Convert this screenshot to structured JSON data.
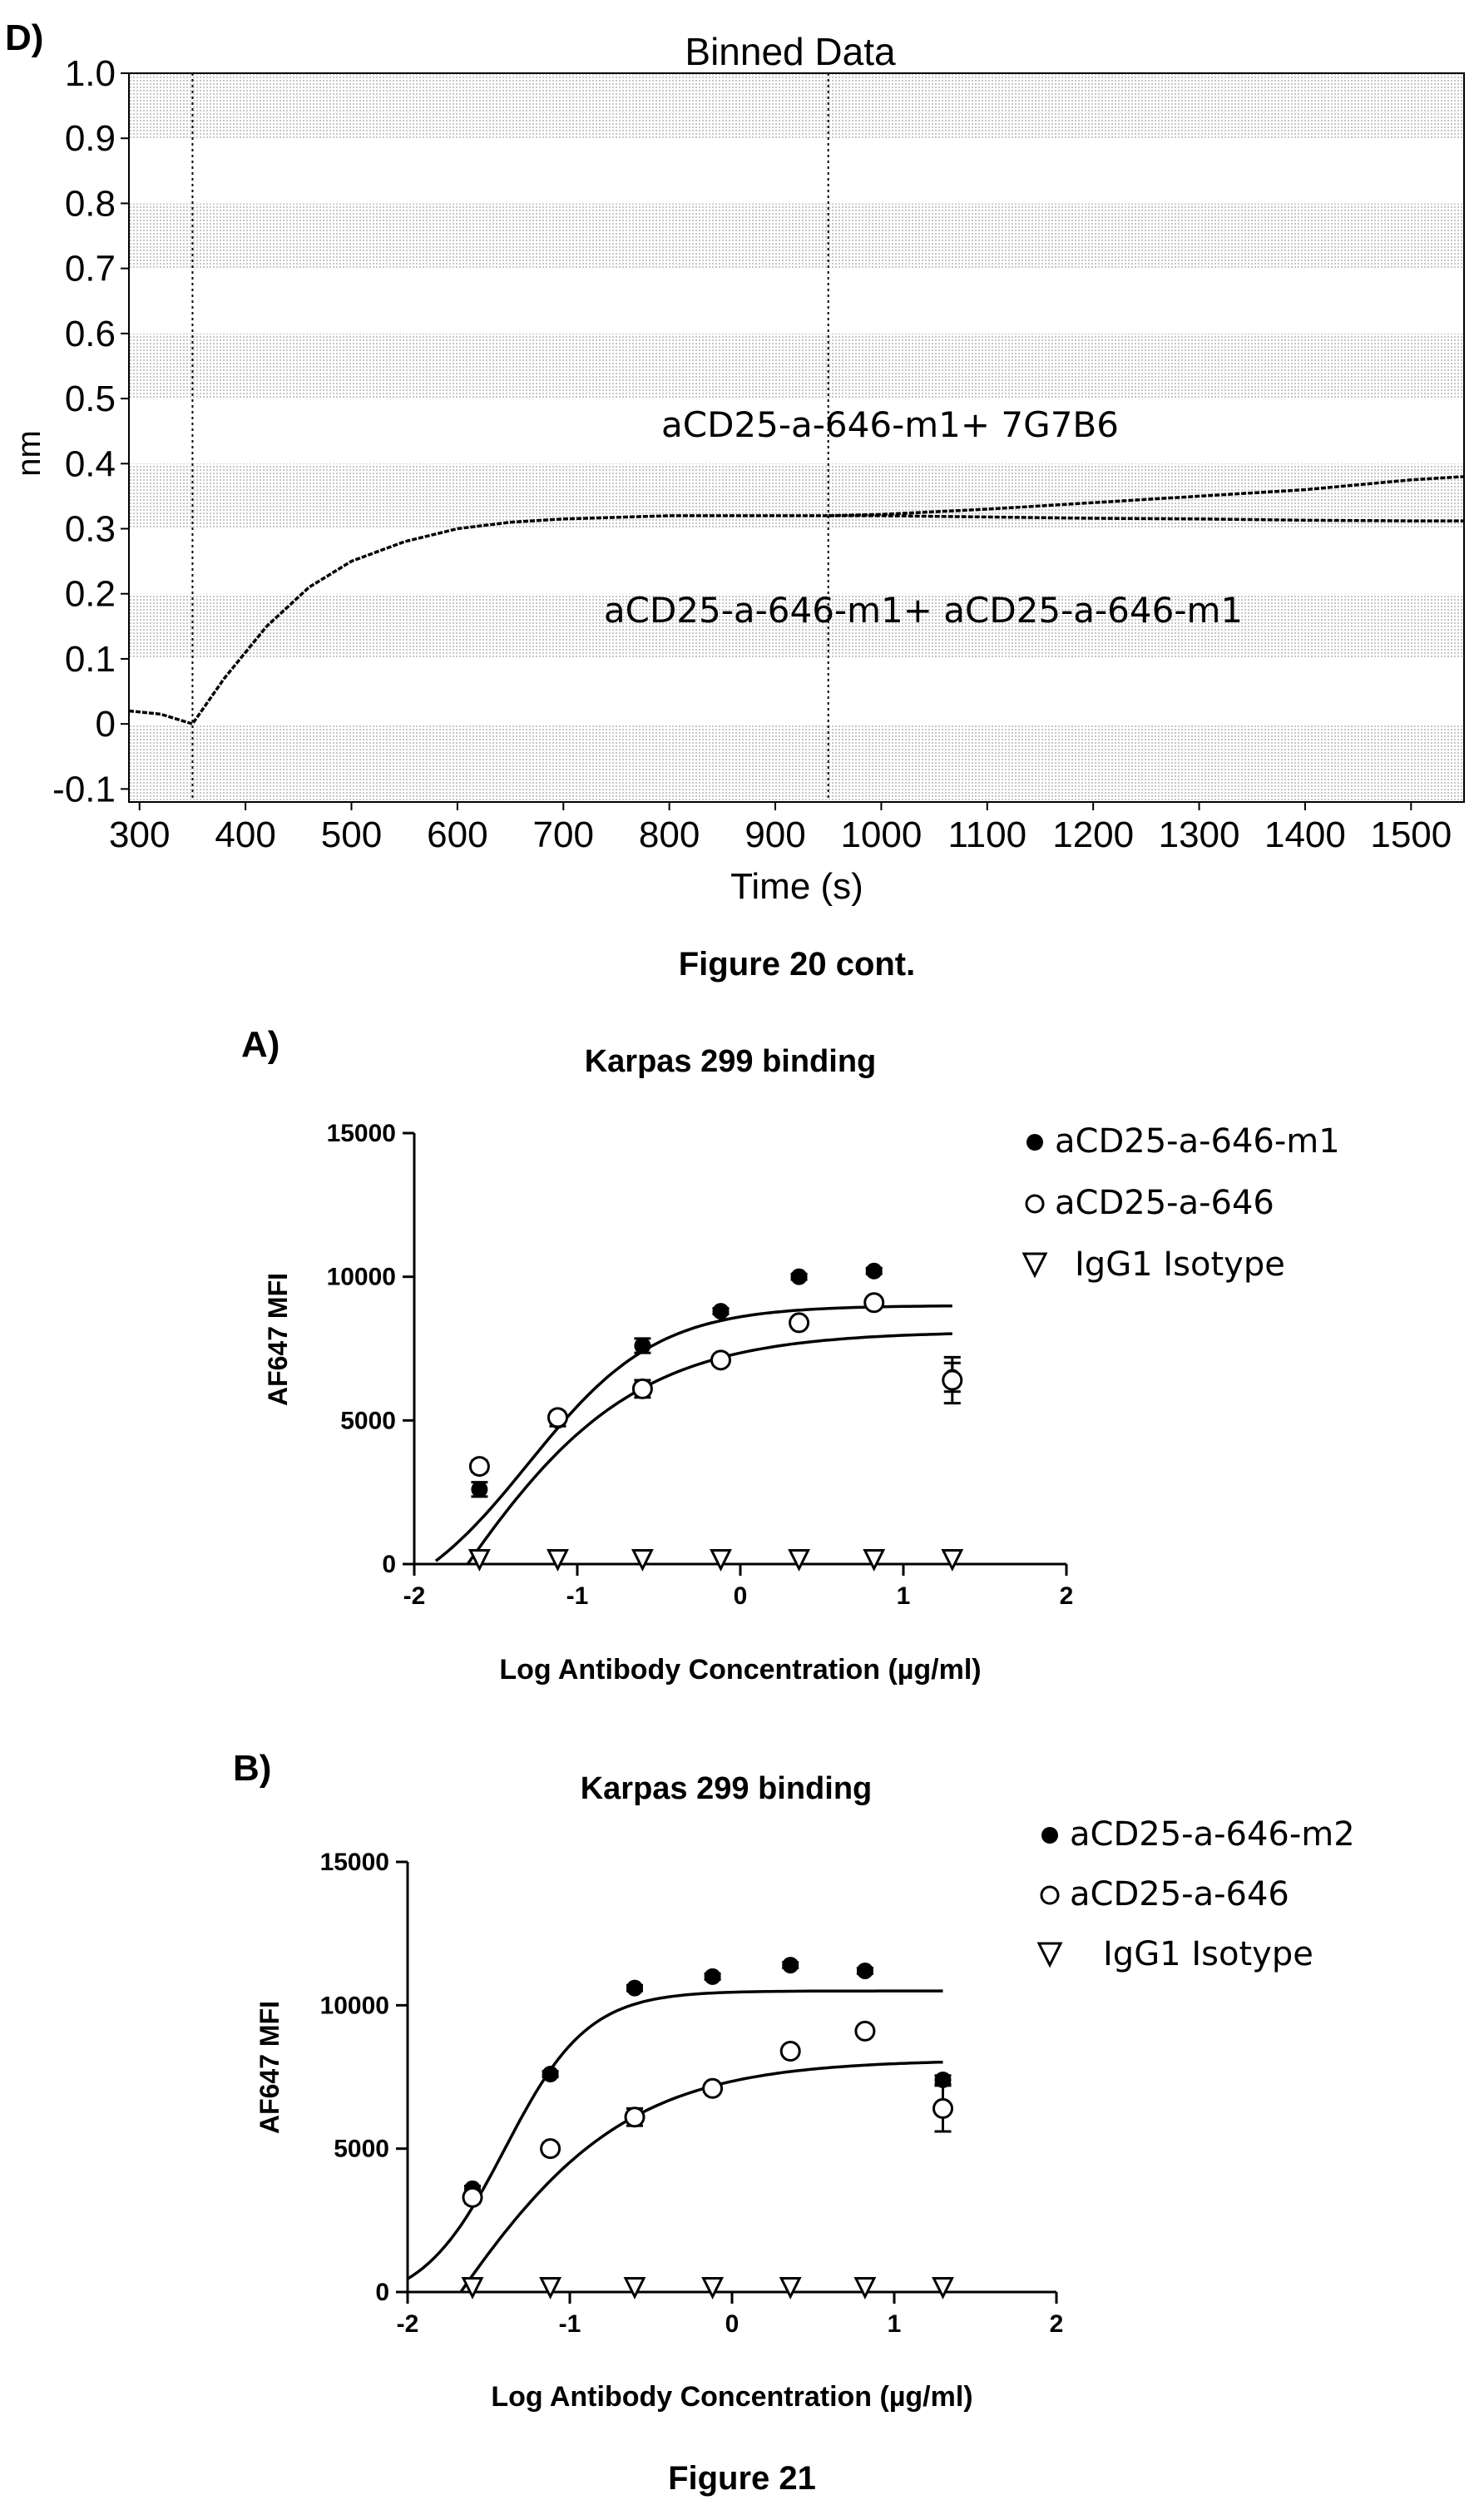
{
  "figure_20_caption": "Figure 20 cont.",
  "figure_21_caption": "Figure 21",
  "colors": {
    "ink": "#000000",
    "shade": "#d9d9d9",
    "background": "#ffffff"
  },
  "chart_data": [
    {
      "panel": "D)",
      "type": "line",
      "title": "Binned Data",
      "xlabel": "Time (s)",
      "ylabel": "nm",
      "xlim": [
        290,
        1550
      ],
      "ylim": [
        -0.12,
        1.0
      ],
      "x_ticks": [
        "300",
        "400",
        "500",
        "600",
        "700",
        "800",
        "900",
        "1000",
        "1100",
        "1200",
        "1300",
        "1400",
        "1500"
      ],
      "y_ticks": [
        "1.0",
        "0.9",
        "0.8",
        "0.7",
        "0.6",
        "0.5",
        "0.4",
        "0.3",
        "0.2",
        "0.1",
        "0",
        "-0.1"
      ],
      "background": "alternating shaded bands every 0.1 nm",
      "vertical_markers_x": [
        350,
        950
      ],
      "annotations": [
        "aCD25-a-646-m1+ 7G7B6",
        "aCD25-a-646-m1+ aCD25-a-646-m1"
      ],
      "series": [
        {
          "name": "aCD25-a-646-m1+ 7G7B6",
          "x": [
            290,
            320,
            350,
            380,
            420,
            460,
            500,
            550,
            600,
            650,
            700,
            800,
            900,
            950,
            1000,
            1100,
            1200,
            1300,
            1400,
            1500,
            1550
          ],
          "y": [
            0.02,
            0.015,
            0.0,
            0.07,
            0.15,
            0.21,
            0.25,
            0.28,
            0.3,
            0.31,
            0.315,
            0.32,
            0.32,
            0.32,
            0.322,
            0.33,
            0.34,
            0.35,
            0.36,
            0.375,
            0.38
          ]
        },
        {
          "name": "aCD25-a-646-m1+ aCD25-a-646-m1",
          "x": [
            950,
            1000,
            1100,
            1200,
            1300,
            1400,
            1500,
            1550
          ],
          "y": [
            0.32,
            0.32,
            0.318,
            0.316,
            0.315,
            0.313,
            0.312,
            0.312
          ]
        }
      ]
    },
    {
      "panel": "A)",
      "type": "scatter",
      "title": "Karpas 299 binding",
      "xlabel": "Log Antibody Concentration (µg/ml)",
      "ylabel": "AF647 MFI",
      "xlim": [
        -2,
        2
      ],
      "ylim": [
        0,
        15000
      ],
      "x_ticks": [
        "-2",
        "-1",
        "0",
        "1",
        "2"
      ],
      "y_ticks": [
        "15000",
        "10000",
        "5000",
        "0"
      ],
      "series": [
        {
          "name": "aCD25-a-646-m1",
          "marker": "filled-circle",
          "x": [
            -1.6,
            -1.12,
            -0.6,
            -0.12,
            0.36,
            0.82,
            1.3
          ],
          "y": [
            2600,
            5000,
            7600,
            8800,
            10000,
            10200,
            6500
          ],
          "err": [
            250,
            200,
            250,
            100,
            100,
            100,
            500
          ],
          "fit": {
            "bottom": -2000,
            "top": 9000,
            "log_ec50": -1.3,
            "hill": 1.1
          }
        },
        {
          "name": "aCD25-a-646",
          "marker": "open-circle",
          "x": [
            -1.6,
            -1.12,
            -0.6,
            -0.12,
            0.36,
            0.82,
            1.3
          ],
          "y": [
            3400,
            5100,
            6100,
            7100,
            8400,
            9100,
            6400
          ],
          "err": [
            200,
            200,
            300,
            150,
            150,
            150,
            800
          ],
          "fit": {
            "bottom": -11000,
            "top": 8100,
            "log_ec50": -1.85,
            "hill": 0.75
          }
        },
        {
          "name": "IgG1 Isotype",
          "marker": "open-triangle-down",
          "x": [
            -1.6,
            -1.12,
            -0.6,
            -0.12,
            0.36,
            0.82,
            1.3
          ],
          "y": [
            100,
            100,
            100,
            100,
            100,
            100,
            100
          ]
        }
      ]
    },
    {
      "panel": "B)",
      "type": "scatter",
      "title": "Karpas 299 binding",
      "xlabel": "Log Antibody Concentration (µg/ml)",
      "ylabel": "AF647 MFI",
      "xlim": [
        -2,
        2
      ],
      "ylim": [
        0,
        15000
      ],
      "x_ticks": [
        "-2",
        "-1",
        "0",
        "1",
        "2"
      ],
      "y_ticks": [
        "15000",
        "10000",
        "5000",
        "0"
      ],
      "series": [
        {
          "name": "aCD25-a-646-m2",
          "marker": "filled-circle",
          "x": [
            -1.6,
            -1.12,
            -0.6,
            -0.12,
            0.36,
            0.82,
            1.3
          ],
          "y": [
            3600,
            7600,
            10600,
            11000,
            11400,
            11200,
            7400
          ],
          "err": [
            100,
            100,
            100,
            100,
            100,
            100,
            150
          ],
          "fit": {
            "bottom": -500,
            "top": 10500,
            "log_ec50": -1.4,
            "hill": 1.7
          }
        },
        {
          "name": "aCD25-a-646",
          "marker": "open-circle",
          "x": [
            -1.6,
            -1.12,
            -0.6,
            -0.12,
            0.36,
            0.82,
            1.3
          ],
          "y": [
            3300,
            5000,
            6100,
            7100,
            8400,
            9100,
            6400
          ],
          "err": [
            200,
            200,
            300,
            150,
            150,
            150,
            800
          ],
          "fit": {
            "bottom": -11000,
            "top": 8100,
            "log_ec50": -1.85,
            "hill": 0.75
          }
        },
        {
          "name": "IgG1 Isotype",
          "marker": "open-triangle-down",
          "x": [
            -1.6,
            -1.12,
            -0.6,
            -0.12,
            0.36,
            0.82,
            1.3
          ],
          "y": [
            100,
            100,
            100,
            100,
            100,
            100,
            100
          ]
        }
      ]
    }
  ]
}
